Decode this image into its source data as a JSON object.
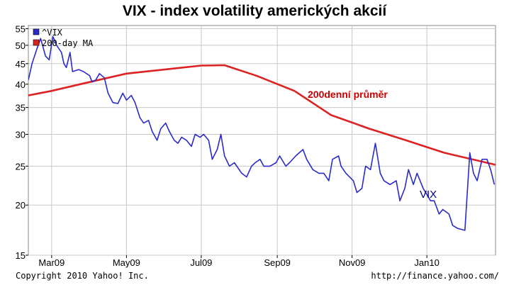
{
  "header": {
    "title": "VIX - index volatility amerických akcií"
  },
  "footer": {
    "copyright": "Copyright 2010 Yahoo! Inc.",
    "source": "http://finance.yahoo.com/"
  },
  "chart_data": {
    "type": "line",
    "y_scale": "log",
    "ylim": [
      15,
      56
    ],
    "y_ticks": [
      15,
      20,
      25,
      30,
      35,
      40,
      45,
      50,
      55
    ],
    "x_tick_labels": [
      "Mar09",
      "May09",
      "Jul09",
      "Sep09",
      "Nov09",
      "Jan10"
    ],
    "x_tick_dates": [
      "2009-03-01",
      "2009-05-01",
      "2009-07-01",
      "2009-09-01",
      "2009-11-01",
      "2010-01-01"
    ],
    "x_range": [
      "2009-02-10",
      "2010-02-26"
    ],
    "grid": true,
    "legend": "top-left",
    "annotations": [
      {
        "text": "200denní průměr",
        "series": "200-day MA",
        "color": "#cc0000"
      },
      {
        "text": "VIX",
        "series": "^VIX",
        "color": "#000080"
      }
    ],
    "series": [
      {
        "name": "^VIX",
        "color": "#2b2bc8",
        "points": [
          [
            "2009-02-10",
            41
          ],
          [
            "2009-02-13",
            45
          ],
          [
            "2009-02-17",
            49
          ],
          [
            "2009-02-20",
            52
          ],
          [
            "2009-02-24",
            47
          ],
          [
            "2009-02-27",
            46
          ],
          [
            "2009-03-02",
            52.6
          ],
          [
            "2009-03-05",
            50
          ],
          [
            "2009-03-09",
            48
          ],
          [
            "2009-03-11",
            45
          ],
          [
            "2009-03-13",
            44
          ],
          [
            "2009-03-16",
            48
          ],
          [
            "2009-03-18",
            43
          ],
          [
            "2009-03-23",
            43.5
          ],
          [
            "2009-03-27",
            43
          ],
          [
            "2009-04-01",
            42
          ],
          [
            "2009-04-03",
            40.5
          ],
          [
            "2009-04-06",
            41
          ],
          [
            "2009-04-09",
            42.5
          ],
          [
            "2009-04-13",
            41.5
          ],
          [
            "2009-04-16",
            38
          ],
          [
            "2009-04-20",
            36
          ],
          [
            "2009-04-24",
            35.8
          ],
          [
            "2009-04-28",
            38
          ],
          [
            "2009-05-01",
            36.5
          ],
          [
            "2009-05-05",
            37.5
          ],
          [
            "2009-05-08",
            36
          ],
          [
            "2009-05-12",
            33
          ],
          [
            "2009-05-15",
            32
          ],
          [
            "2009-05-19",
            32.5
          ],
          [
            "2009-05-22",
            30.5
          ],
          [
            "2009-05-26",
            29
          ],
          [
            "2009-05-29",
            31
          ],
          [
            "2009-06-02",
            32
          ],
          [
            "2009-06-05",
            30.5
          ],
          [
            "2009-06-09",
            29
          ],
          [
            "2009-06-12",
            28.5
          ],
          [
            "2009-06-15",
            29.5
          ],
          [
            "2009-06-19",
            29
          ],
          [
            "2009-06-23",
            28
          ],
          [
            "2009-06-26",
            30
          ],
          [
            "2009-06-30",
            29.5
          ],
          [
            "2009-07-03",
            30
          ],
          [
            "2009-07-07",
            29
          ],
          [
            "2009-07-10",
            26
          ],
          [
            "2009-07-14",
            27.5
          ],
          [
            "2009-07-17",
            30
          ],
          [
            "2009-07-20",
            26.5
          ],
          [
            "2009-07-24",
            25
          ],
          [
            "2009-07-28",
            25.5
          ],
          [
            "2009-08-03",
            24
          ],
          [
            "2009-08-07",
            23.5
          ],
          [
            "2009-08-11",
            25
          ],
          [
            "2009-08-14",
            25.5
          ],
          [
            "2009-08-18",
            26
          ],
          [
            "2009-08-21",
            25
          ],
          [
            "2009-08-26",
            25
          ],
          [
            "2009-08-31",
            25.5
          ],
          [
            "2009-09-03",
            26.5
          ],
          [
            "2009-09-08",
            25
          ],
          [
            "2009-09-11",
            25.5
          ],
          [
            "2009-09-16",
            26.5
          ],
          [
            "2009-09-22",
            27.5
          ],
          [
            "2009-09-25",
            26
          ],
          [
            "2009-09-30",
            24.5
          ],
          [
            "2009-10-05",
            24
          ],
          [
            "2009-10-09",
            24
          ],
          [
            "2009-10-13",
            23
          ],
          [
            "2009-10-16",
            26
          ],
          [
            "2009-10-21",
            26.5
          ],
          [
            "2009-10-23",
            25
          ],
          [
            "2009-10-27",
            24
          ],
          [
            "2009-11-02",
            23
          ],
          [
            "2009-11-05",
            21.5
          ],
          [
            "2009-11-09",
            22
          ],
          [
            "2009-11-12",
            25
          ],
          [
            "2009-11-16",
            24.5
          ],
          [
            "2009-11-20",
            28.5
          ],
          [
            "2009-11-24",
            24
          ],
          [
            "2009-11-27",
            23
          ],
          [
            "2009-12-02",
            22.5
          ],
          [
            "2009-12-07",
            23
          ],
          [
            "2009-12-10",
            20.5
          ],
          [
            "2009-12-14",
            22
          ],
          [
            "2009-12-17",
            24.5
          ],
          [
            "2009-12-21",
            22.5
          ],
          [
            "2009-12-24",
            24
          ],
          [
            "2009-12-29",
            22
          ],
          [
            "2010-01-04",
            20.5
          ],
          [
            "2010-01-07",
            20.5
          ],
          [
            "2010-01-11",
            19
          ],
          [
            "2010-01-14",
            19.5
          ],
          [
            "2010-01-19",
            19
          ],
          [
            "2010-01-22",
            17.8
          ],
          [
            "2010-01-26",
            17.5
          ],
          [
            "2010-02-01",
            17.3
          ],
          [
            "2010-02-05",
            27
          ],
          [
            "2010-02-08",
            24
          ],
          [
            "2010-02-11",
            23
          ],
          [
            "2010-02-15",
            26
          ],
          [
            "2010-02-19",
            26
          ],
          [
            "2010-02-22",
            24.5
          ],
          [
            "2010-02-25",
            22.5
          ]
        ]
      },
      {
        "name": "200-day MA",
        "color": "#dd2222",
        "points": [
          [
            "2009-02-10",
            37.5
          ],
          [
            "2009-03-01",
            38.5
          ],
          [
            "2009-04-01",
            40.5
          ],
          [
            "2009-05-01",
            42.5
          ],
          [
            "2009-06-01",
            43.5
          ],
          [
            "2009-07-01",
            44.5
          ],
          [
            "2009-07-20",
            44.6
          ],
          [
            "2009-08-15",
            42
          ],
          [
            "2009-09-15",
            38.5
          ],
          [
            "2009-10-15",
            33.5
          ],
          [
            "2009-11-15",
            31
          ],
          [
            "2009-12-15",
            29
          ],
          [
            "2010-01-15",
            27
          ],
          [
            "2010-02-26",
            25.2
          ]
        ]
      }
    ]
  }
}
